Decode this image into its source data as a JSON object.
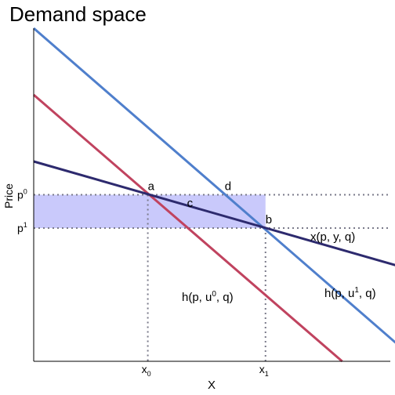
{
  "chart_data": {
    "type": "line",
    "title": "Demand space",
    "xlabel": "X",
    "ylabel": "Price",
    "xlim": [
      0,
      10
    ],
    "ylim": [
      0,
      10
    ],
    "grid": false,
    "y_ticks": [
      {
        "label": "p",
        "sup": "0",
        "value": 5
      },
      {
        "label": "p",
        "sup": "1",
        "value": 4
      }
    ],
    "x_ticks": [
      {
        "label": "x",
        "sub": "0",
        "value": 3.2
      },
      {
        "label": "x",
        "sub": "1",
        "value": 6.5
      }
    ],
    "series": [
      {
        "key": "hicks_u1",
        "color": "#4f7fcc",
        "points": [
          [
            0,
            10
          ],
          [
            10.75,
            0
          ]
        ],
        "label": {
          "text": "h(p, u",
          "sup": "1",
          "tail": ", q)"
        }
      },
      {
        "key": "hicks_u0",
        "color": "#c0435f",
        "points": [
          [
            0,
            8
          ],
          [
            8.65,
            0
          ]
        ],
        "label": {
          "text": "h(p, u",
          "sup": "0",
          "tail": ", q)"
        }
      },
      {
        "key": "marshallian",
        "color": "#2d2a6e",
        "points": [
          [
            0,
            6
          ],
          [
            10.75,
            2.7
          ]
        ],
        "label": {
          "text": "x(p, y, q)",
          "sup": "",
          "tail": ""
        }
      }
    ],
    "reference_lines": {
      "y": [
        5,
        4
      ],
      "x": [
        3.2,
        6.5
      ],
      "style": "dotted",
      "color": "#7a7a8a"
    },
    "shaded_region": {
      "y_range": [
        4,
        5
      ],
      "x_range": [
        0,
        6.5
      ],
      "color": "#c9c9fb"
    },
    "points": [
      {
        "label": "a",
        "x": 3.2,
        "y": 5
      },
      {
        "label": "b",
        "x": 6.5,
        "y": 4
      },
      {
        "label": "c",
        "x": 4.3,
        "y": 4.5
      },
      {
        "label": "d",
        "x": 5.4,
        "y": 5
      }
    ]
  }
}
